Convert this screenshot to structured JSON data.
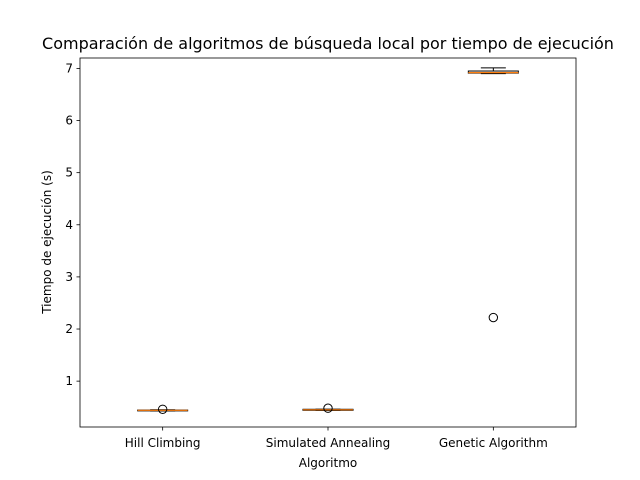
{
  "chart_data": {
    "type": "box",
    "title": "Comparación de algoritmos de búsqueda local por tiempo de ejecución",
    "xlabel": "Algoritmo",
    "ylabel": "Tiempo de ejecución (s)",
    "categories": [
      "Hill Climbing",
      "Simulated Annealing",
      "Genetic Algorithm"
    ],
    "ylim": [
      0.12,
      7.2
    ],
    "yticks": [
      1,
      2,
      3,
      4,
      5,
      6,
      7
    ],
    "grid": false,
    "boxes": [
      {
        "category": "Hill Climbing",
        "whislo": 0.43,
        "q1": 0.435,
        "med": 0.44,
        "q3": 0.445,
        "whishi": 0.45,
        "fliers": [
          0.46
        ]
      },
      {
        "category": "Simulated Annealing",
        "whislo": 0.44,
        "q1": 0.44,
        "med": 0.45,
        "q3": 0.46,
        "whishi": 0.46,
        "fliers": [
          0.48
        ]
      },
      {
        "category": "Genetic Algorithm",
        "whislo": 6.9,
        "q1": 6.91,
        "med": 6.92,
        "q3": 6.95,
        "whishi": 7.01,
        "fliers": [
          2.22
        ]
      }
    ],
    "colors": {
      "box": "#000000",
      "median": "#ff7f0e",
      "background": "#ffffff",
      "flier_edge": "#000000"
    }
  }
}
